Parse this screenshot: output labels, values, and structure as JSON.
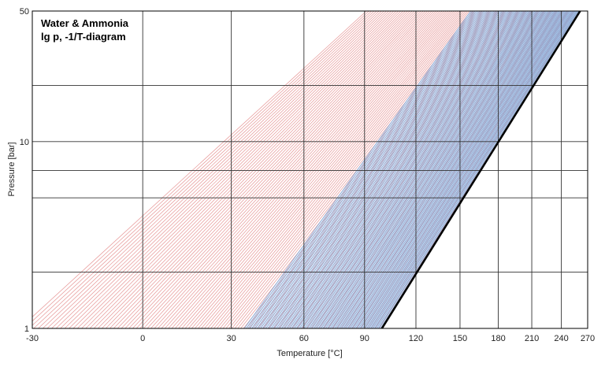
{
  "chart_data": {
    "type": "line",
    "title_lines": [
      "Water & Ammonia",
      "lg p, -1/T-diagram"
    ],
    "xlabel": "Temperature [°C]",
    "ylabel": "Pressure [bar]",
    "x_axis": {
      "scale": "reciprocal (-1/T, T in K)",
      "range_celsius": [
        -30,
        270
      ],
      "ticks": [
        -30,
        0,
        30,
        60,
        90,
        120,
        150,
        180,
        210,
        240,
        270
      ],
      "tick_labels": [
        "-30",
        "0",
        "30",
        "60",
        "90",
        "120",
        "150",
        "180",
        "210",
        "240",
        "270"
      ]
    },
    "y_axis": {
      "scale": "log",
      "range": [
        1,
        50
      ],
      "grid_values": [
        1,
        2,
        5,
        7,
        10,
        20,
        50
      ],
      "tick_labels": [
        {
          "value": 1,
          "label": "1"
        },
        {
          "value": 10,
          "label": "10"
        },
        {
          "value": 50,
          "label": "50"
        }
      ]
    },
    "grid": true,
    "series": [
      {
        "role": "pure water vapour-pressure boundary (bold black)",
        "color": "#000000",
        "points": [
          [
            99.6,
            1
          ],
          [
            261,
            50
          ]
        ]
      },
      {
        "role": "isosteres (lines of constant concentration), red family",
        "color": "#e38a8a",
        "x_at_p1": {
          "from": -33,
          "to": 99
        },
        "x_at_p50": {
          "from": 91,
          "to": 258
        }
      },
      {
        "role": "isosteres (lines of constant concentration), blue family",
        "color": "#6fa3dc",
        "x_at_p1": {
          "from": 35,
          "to": 99
        },
        "x_at_p50": {
          "from": 158,
          "to": 260
        }
      }
    ]
  }
}
